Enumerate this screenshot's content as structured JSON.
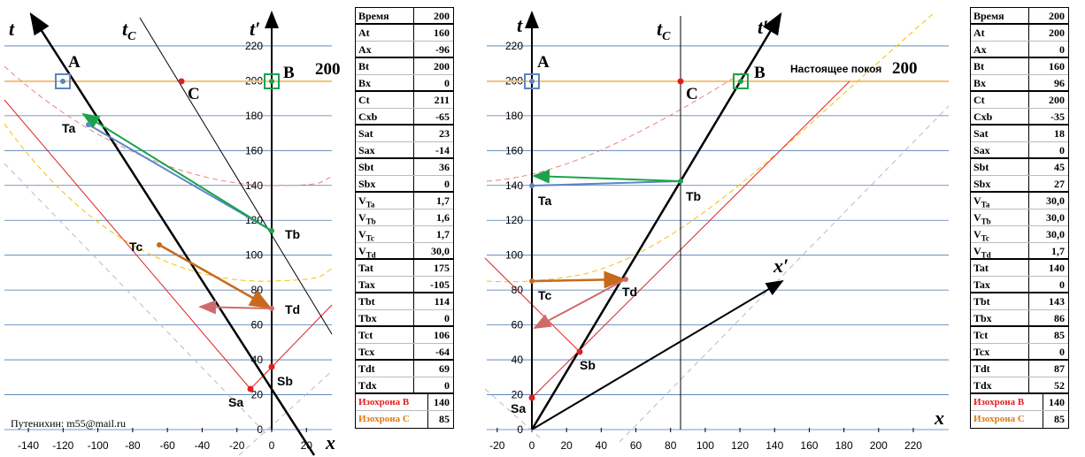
{
  "left": {
    "yticks": [
      0,
      20,
      40,
      60,
      80,
      100,
      120,
      140,
      160,
      180,
      200,
      220
    ],
    "xticks": [
      -140,
      -120,
      -100,
      -80,
      -60,
      -40,
      -20,
      0,
      20
    ],
    "labels": {
      "t": "t",
      "tc": "t",
      "tc_sub": "C",
      "tp": "t′",
      "x": "x",
      "A": "A",
      "B": "B",
      "C": "C",
      "now": "200",
      "Ta": "Ta",
      "Tb": "Tb",
      "Tc": "Tc",
      "Td": "Td",
      "Sa": "Sa",
      "Sb": "Sb",
      "author": "Путенихин:  m55@mail.ru"
    },
    "table": {
      "rows": [
        [
          "Время",
          200
        ],
        [
          "At",
          160
        ],
        [
          "Ax",
          -96
        ],
        [
          "Bt",
          200
        ],
        [
          "Bx",
          0
        ],
        [
          "Ct",
          211
        ],
        [
          "Cxb",
          -65
        ],
        [
          "Sat",
          23
        ],
        [
          "Sax",
          -14
        ],
        [
          "Sbt",
          36
        ],
        [
          "Sbx",
          0
        ],
        [
          "V",
          "Ta",
          "1,7"
        ],
        [
          "V",
          "Tb",
          "1,6"
        ],
        [
          "V",
          "Tc",
          "1,7"
        ],
        [
          "V",
          "Td",
          "30,0"
        ],
        [
          "Tat",
          175
        ],
        [
          "Tax",
          -105
        ],
        [
          "Tbt",
          114
        ],
        [
          "Tbx",
          0
        ],
        [
          "Tct",
          106
        ],
        [
          "Tcx",
          -64
        ],
        [
          "Tdt",
          69
        ],
        [
          "Tdx",
          0
        ]
      ],
      "isochrones": [
        [
          "Изохрона B",
          140
        ],
        [
          "Изохрона C",
          85
        ]
      ]
    }
  },
  "right": {
    "yticks": [
      0,
      20,
      40,
      60,
      80,
      100,
      120,
      140,
      160,
      180,
      200,
      220
    ],
    "xticks": [
      -20,
      0,
      20,
      40,
      60,
      80,
      100,
      120,
      140,
      160,
      180,
      200,
      220
    ],
    "labels": {
      "t": "t",
      "tc": "t",
      "tc_sub": "C",
      "tp": "t′",
      "x": "x",
      "xp": "x′",
      "A": "A",
      "B": "B",
      "C": "C",
      "rest": "Настоящее покоя",
      "now": "200",
      "Ta": "Ta",
      "Tb": "Tb",
      "Tc": "Tc",
      "Td": "Td",
      "Sa": "Sa",
      "Sb": "Sb"
    },
    "table": {
      "rows": [
        [
          "Время",
          200
        ],
        [
          "At",
          200
        ],
        [
          "Ax",
          0
        ],
        [
          "Bt",
          160
        ],
        [
          "Bx",
          96
        ],
        [
          "Ct",
          200
        ],
        [
          "Cxb",
          -35
        ],
        [
          "Sat",
          18
        ],
        [
          "Sax",
          0
        ],
        [
          "Sbt",
          45
        ],
        [
          "Sbx",
          27
        ],
        [
          "V",
          "Ta",
          "30,0"
        ],
        [
          "V",
          "Tb",
          "30,0"
        ],
        [
          "V",
          "Tc",
          "30,0"
        ],
        [
          "V",
          "Td",
          "1,7"
        ],
        [
          "Tat",
          140
        ],
        [
          "Tax",
          0
        ],
        [
          "Tbt",
          143
        ],
        [
          "Tbx",
          86
        ],
        [
          "Tct",
          85
        ],
        [
          "Tcx",
          0
        ],
        [
          "Tdt",
          87
        ],
        [
          "Tdx",
          52
        ]
      ],
      "isochrones": [
        [
          "Изохрона B",
          140
        ],
        [
          "Изохрона C",
          85
        ]
      ]
    }
  }
}
